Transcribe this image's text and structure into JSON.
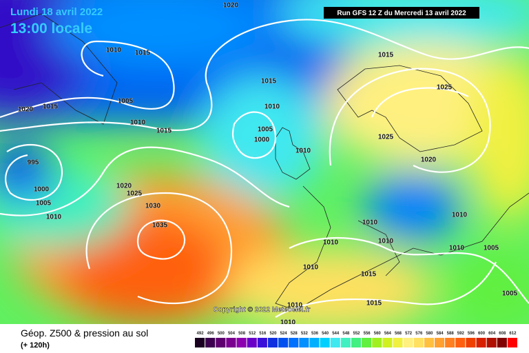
{
  "header": {
    "date": "Lundi 18 avril 2022",
    "time": "13:00 locale",
    "run": "Run GFS 12 Z du Mercredi 13 avril 2022"
  },
  "isobar_labels": [
    "1020",
    "1010",
    "1015",
    "1015",
    "1005",
    "1010",
    "1020",
    "1015",
    "1015",
    "1010",
    "1005",
    "1000",
    "1010",
    "995",
    "1000",
    "1005",
    "1010",
    "1020",
    "1025",
    "1030",
    "1035",
    "1015",
    "1025",
    "1025",
    "1020",
    "1010",
    "1010",
    "1010",
    "1010",
    "1010",
    "1005",
    "1005",
    "1015",
    "1015",
    "1010",
    "1010",
    "1010"
  ],
  "copyright": "Copyright © 2022 Meteociel.fr",
  "footer": {
    "title": "Géop. Z500 & pression au sol",
    "subtitle": "(+ 120h)"
  },
  "scale": {
    "labels": [
      "492",
      "496",
      "500",
      "504",
      "508",
      "512",
      "516",
      "520",
      "524",
      "528",
      "532",
      "536",
      "540",
      "544",
      "548",
      "552",
      "556",
      "560",
      "564",
      "568",
      "572",
      "576",
      "580",
      "584",
      "588",
      "592",
      "596",
      "600",
      "604",
      "608",
      "612"
    ],
    "colors": [
      "#1a0020",
      "#3d004f",
      "#5e006e",
      "#7a0090",
      "#8c00b0",
      "#6a00c8",
      "#3a10d8",
      "#1030e0",
      "#0050f0",
      "#0070ff",
      "#0090ff",
      "#00b0ff",
      "#00d0ff",
      "#40e8f0",
      "#40f0c0",
      "#40f080",
      "#60f040",
      "#a0f020",
      "#d0f020",
      "#f0f040",
      "#fff080",
      "#ffe060",
      "#ffc040",
      "#ffa030",
      "#ff8020",
      "#ff6010",
      "#f04000",
      "#d82000",
      "#b01000",
      "#800000",
      "#ff0000"
    ]
  }
}
